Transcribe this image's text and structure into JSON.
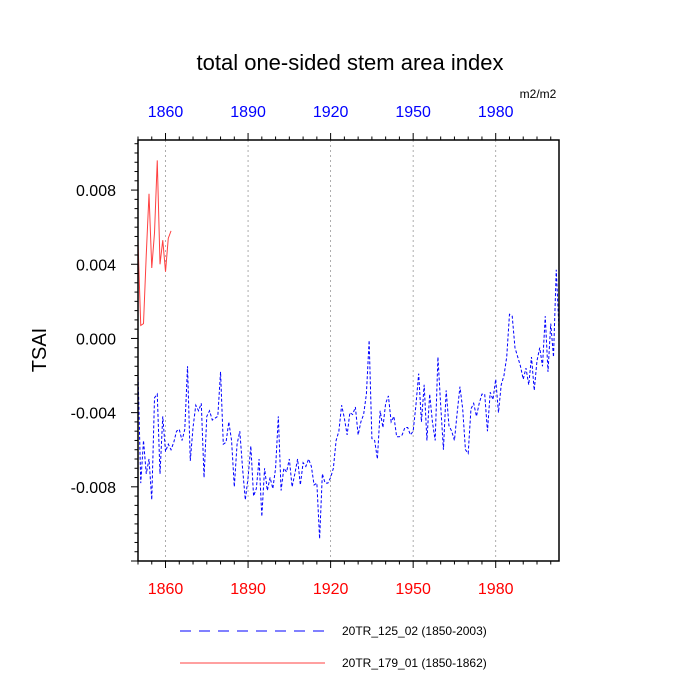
{
  "chart_data": {
    "type": "line",
    "title": "total one-sided stem area index",
    "units": "m2/m2",
    "ylabel": "TSAI",
    "xlabel": "",
    "xlim": [
      1850,
      2003
    ],
    "ylim": [
      -0.012,
      0.0107
    ],
    "yticks": [
      {
        "value": 0.008,
        "label": "0.008"
      },
      {
        "value": 0.004,
        "label": "0.004"
      },
      {
        "value": 0.0,
        "label": "0.000"
      },
      {
        "value": -0.004,
        "label": "-0.004"
      },
      {
        "value": -0.008,
        "label": "-0.008"
      }
    ],
    "xticks": [
      {
        "value": 1860,
        "label": "1860"
      },
      {
        "value": 1890,
        "label": "1890"
      },
      {
        "value": 1920,
        "label": "1920"
      },
      {
        "value": 1950,
        "label": "1950"
      },
      {
        "value": 1980,
        "label": "1980"
      }
    ],
    "bottom_axis_color": "#ff0000",
    "top_axis_color": "#0000ff",
    "grid": "vertical dashed at major x ticks",
    "series": [
      {
        "name": "20TR_125_02 (1850-2003)",
        "color": "#0000ff",
        "dash": "dashed",
        "x_start": 1850,
        "values": [
          -0.0018,
          -0.0078,
          -0.0055,
          -0.0073,
          -0.0065,
          -0.0087,
          -0.0032,
          -0.003,
          -0.0073,
          -0.0042,
          -0.0061,
          -0.0057,
          -0.006,
          -0.0056,
          -0.005,
          -0.0049,
          -0.0055,
          -0.0049,
          -0.0015,
          -0.0066,
          -0.0048,
          -0.0036,
          -0.0039,
          -0.0035,
          -0.0075,
          -0.0042,
          -0.0039,
          -0.0044,
          -0.0043,
          -0.0042,
          -0.0018,
          -0.0057,
          -0.0056,
          -0.0045,
          -0.0055,
          -0.008,
          -0.0057,
          -0.005,
          -0.007,
          -0.0087,
          -0.0075,
          -0.0058,
          -0.0085,
          -0.0081,
          -0.0065,
          -0.0096,
          -0.007,
          -0.0082,
          -0.0075,
          -0.0081,
          -0.007,
          -0.0042,
          -0.0082,
          -0.007,
          -0.0072,
          -0.0065,
          -0.008,
          -0.0073,
          -0.0065,
          -0.0079,
          -0.0067,
          -0.0069,
          -0.0065,
          -0.0069,
          -0.0079,
          -0.0078,
          -0.0108,
          -0.0073,
          -0.0078,
          -0.0078,
          -0.0075,
          -0.007,
          -0.0055,
          -0.005,
          -0.0036,
          -0.0043,
          -0.0052,
          -0.004,
          -0.0041,
          -0.0037,
          -0.0052,
          -0.0045,
          -0.0041,
          -0.003,
          -0.0001,
          -0.0054,
          -0.0055,
          -0.0065,
          -0.0039,
          -0.0048,
          -0.0035,
          -0.0031,
          -0.0045,
          -0.0042,
          -0.0053,
          -0.0053,
          -0.0052,
          -0.0048,
          -0.0048,
          -0.0052,
          -0.005,
          -0.0036,
          -0.0019,
          -0.0045,
          -0.0025,
          -0.0055,
          -0.003,
          -0.0045,
          -0.0055,
          -0.001,
          -0.0036,
          -0.006,
          -0.0028,
          -0.0047,
          -0.005,
          -0.0055,
          -0.004,
          -0.0026,
          -0.0038,
          -0.006,
          -0.0062,
          -0.0038,
          -0.0035,
          -0.0042,
          -0.0035,
          -0.003,
          -0.003,
          -0.005,
          -0.0029,
          -0.0033,
          -0.0022,
          -0.004,
          -0.0025,
          -0.002,
          -0.001,
          0.0013,
          0.0012,
          -0.0005,
          -0.001,
          -0.0015,
          -0.0022,
          -0.0016,
          -0.0025,
          -0.001,
          -0.0028,
          -0.0012,
          -0.0005,
          -0.0015,
          0.0012,
          -0.0018,
          0.0008,
          -0.001,
          0.0037,
          0.0005
        ]
      },
      {
        "name": "20TR_179_01 (1850-1862)",
        "color": "#ff4040",
        "dash": "solid",
        "x_start": 1850,
        "values": [
          0.0052,
          0.0007,
          0.0008,
          0.0045,
          0.0078,
          0.0038,
          0.0057,
          0.0096,
          0.004,
          0.0053,
          0.0036,
          0.0054,
          0.0058
        ]
      }
    ]
  }
}
